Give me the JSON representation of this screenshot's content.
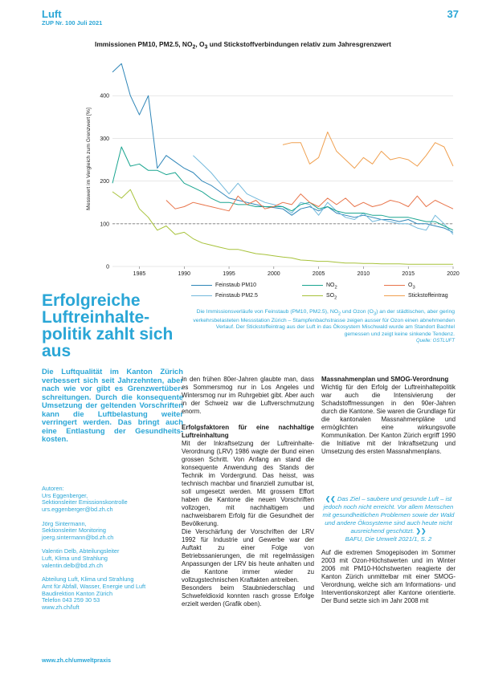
{
  "header": {
    "section": "Luft",
    "issue": "ZUP Nr. 100 Juli 2021",
    "page_number": "37"
  },
  "chart_title_parts": {
    "pre": "Immissionen PM10, PM2.5, NO",
    "sub1": "2",
    "mid": ", O",
    "sub2": "3",
    "post": " und Stickstoffverbindungen relativ zum Jahresgrenzwert"
  },
  "chart_data": {
    "type": "line",
    "title": "Immissionen PM10, PM2.5, NO2, O3 und Stickstoffverbindungen relativ zum Jahresgrenzwert",
    "ylabel": "Messwert im Vergleich zum Grenzwert [%]",
    "xlabel": "",
    "xlim": [
      1982,
      2020
    ],
    "ylim": [
      0,
      500
    ],
    "x_ticks": [
      "1985",
      "1990",
      "1995",
      "2000",
      "2005",
      "2010",
      "2015",
      "2020"
    ],
    "y_ticks": [
      "0",
      "100",
      "200",
      "300",
      "400"
    ],
    "reference_line": 100,
    "grid": "horizontal",
    "legend_position": "bottom",
    "series": [
      {
        "name": "Feinstaub PM10",
        "color": "#2f86b8",
        "x": [
          1982,
          1983,
          1984,
          1985,
          1986,
          1987,
          1988,
          1989,
          1990,
          1991,
          1992,
          1993,
          1994,
          1995,
          1996,
          1997,
          1998,
          1999,
          2000,
          2001,
          2002,
          2003,
          2004,
          2005,
          2006,
          2007,
          2008,
          2009,
          2010,
          2011,
          2012,
          2013,
          2014,
          2015,
          2016,
          2017,
          2018,
          2019,
          2020
        ],
        "y": [
          455,
          475,
          400,
          355,
          400,
          230,
          260,
          245,
          230,
          220,
          200,
          190,
          175,
          160,
          155,
          150,
          145,
          140,
          138,
          135,
          120,
          135,
          140,
          130,
          140,
          125,
          120,
          115,
          120,
          115,
          110,
          110,
          105,
          110,
          100,
          100,
          95,
          90,
          80
        ]
      },
      {
        "name": "Feinstaub PM2.5",
        "color": "#73b9dc",
        "x": [
          1991,
          1992,
          1993,
          1994,
          1995,
          1996,
          1997,
          1998,
          1999,
          2000,
          2001,
          2002,
          2003,
          2004,
          2005,
          2006,
          2007,
          2008,
          2009,
          2010,
          2011,
          2012,
          2013,
          2014,
          2015,
          2016,
          2017,
          2018,
          2019,
          2020
        ],
        "y": [
          260,
          240,
          220,
          195,
          170,
          195,
          170,
          160,
          150,
          145,
          140,
          125,
          150,
          145,
          120,
          150,
          130,
          115,
          110,
          125,
          105,
          110,
          105,
          100,
          100,
          90,
          85,
          120,
          100,
          75
        ]
      },
      {
        "name": "NO2",
        "color": "#1aa590",
        "x": [
          1982,
          1983,
          1984,
          1985,
          1986,
          1987,
          1988,
          1989,
          1990,
          1991,
          1992,
          1993,
          1994,
          1995,
          1996,
          1997,
          1998,
          1999,
          2000,
          2001,
          2002,
          2003,
          2004,
          2005,
          2006,
          2007,
          2008,
          2009,
          2010,
          2011,
          2012,
          2013,
          2014,
          2015,
          2016,
          2017,
          2018,
          2019,
          2020
        ],
        "y": [
          195,
          280,
          235,
          240,
          225,
          225,
          215,
          220,
          195,
          185,
          175,
          160,
          150,
          150,
          145,
          145,
          140,
          140,
          140,
          140,
          130,
          145,
          150,
          135,
          140,
          130,
          125,
          125,
          125,
          120,
          120,
          115,
          115,
          115,
          110,
          105,
          105,
          95,
          85
        ]
      },
      {
        "name": "SO2",
        "color": "#a7c23a",
        "x": [
          1982,
          1983,
          1984,
          1985,
          1986,
          1987,
          1988,
          1989,
          1990,
          1991,
          1992,
          1993,
          1994,
          1995,
          1996,
          1997,
          1998,
          1999,
          2000,
          2001,
          2002,
          2003,
          2004,
          2005,
          2006,
          2007,
          2008,
          2009,
          2010,
          2011,
          2012,
          2013,
          2014,
          2015,
          2016,
          2017,
          2018,
          2019,
          2020
        ],
        "y": [
          175,
          160,
          180,
          135,
          115,
          85,
          95,
          75,
          80,
          65,
          55,
          50,
          45,
          40,
          40,
          35,
          30,
          28,
          25,
          22,
          20,
          15,
          14,
          12,
          12,
          10,
          8,
          8,
          7,
          7,
          6,
          6,
          6,
          5,
          5,
          5,
          5,
          5,
          5
        ]
      },
      {
        "name": "O3",
        "color": "#e8744a",
        "x": [
          1988,
          1989,
          1990,
          1991,
          1992,
          1993,
          1994,
          1995,
          1996,
          1997,
          1998,
          1999,
          2000,
          2001,
          2002,
          2003,
          2004,
          2005,
          2006,
          2007,
          2008,
          2009,
          2010,
          2011,
          2012,
          2013,
          2014,
          2015,
          2016,
          2017,
          2018,
          2019,
          2020
        ],
        "y": [
          155,
          135,
          140,
          150,
          145,
          140,
          135,
          130,
          165,
          145,
          155,
          135,
          140,
          150,
          145,
          170,
          150,
          140,
          160,
          145,
          160,
          140,
          150,
          140,
          145,
          155,
          150,
          140,
          165,
          140,
          155,
          145,
          135
        ]
      },
      {
        "name": "Stickstoffeintrag",
        "color": "#f0a050",
        "x": [
          2001,
          2002,
          2003,
          2004,
          2005,
          2006,
          2007,
          2008,
          2009,
          2010,
          2011,
          2012,
          2013,
          2014,
          2015,
          2016,
          2017,
          2018,
          2019,
          2020
        ],
        "y": [
          285,
          290,
          290,
          240,
          255,
          315,
          270,
          250,
          230,
          255,
          240,
          270,
          250,
          255,
          250,
          235,
          260,
          290,
          280,
          235
        ]
      }
    ]
  },
  "legend": {
    "pm10": "Feinstaub PM10",
    "pm25": "Feinstaub PM2.5",
    "no2_pre": "NO",
    "no2_sub": "2",
    "so2_pre": "SO",
    "so2_sub": "2",
    "o3_pre": "O",
    "o3_sub": "3",
    "stick": "Stickstoffeintrag"
  },
  "caption": {
    "a": "Die Immissionsverläufe von Feinstaub (PM10, PM2.5), NO",
    "a_sub": "2",
    "b": " und Ozon (O",
    "b_sub": "3",
    "c": ") an der städtischen, aber gering verkehrsbelasteten Messstation Zürich – Stampfenbachstrasse zeigen ausser für Ozon einen abnehmenden Verlauf. Der Stickstoffeintrag aus der Luft in das Ökosystem Mischwald wurde am Standort Bachtel gemessen und zeigt keine sinkende Tendenz.",
    "source": "Quelle: OSTLUFT"
  },
  "article": {
    "headline": "Erfolgreiche Luftreinhalte­politik zahlt sich aus",
    "lead": "Die Luftqualität im Kanton Zürich verbessert sich seit Jahrzehnten, aber nach wie vor gibt es Grenzwertüber­schreitungen. Durch die konsequente Umsetzung der geltenden Vorschriften kann die Luftbelastung weiter verringert werden. Das bringt auch eine Ent­lastung der Gesundheits­kosten.",
    "authors_label": "Autoren:",
    "author1_name": "Urs Eggenberger,",
    "author1_role": "Sektionsleiter Emissionskontrolle",
    "author1_email": "urs.eggenberger@bd.zh.ch",
    "author2_name": "Jörg Sintermann,",
    "author2_role": "Sektionsleiter Monitoring",
    "author2_email": "joerg.sintermann@bd.zh.ch",
    "author3_name": "Valentin Delb, Abteilungsleiter",
    "author3_role": "Luft, Klima und Strahlung",
    "author3_email": "valentin.delb@bd.zh.ch",
    "org_line1": "Abteilung Luft, Klima und Strahlung",
    "org_line2": "Amt für Abfall, Wasser, Energie und Luft",
    "org_line3": "Baudirektion Kanton Zürich",
    "org_phone": "Telefon 043 259 30 53",
    "org_web": "www.zh.ch/luft",
    "col2_p1": "In den frühen 80er-Jahren glaubte man, dass es Sommersmog nur in Los Angeles und Wintersmog nur im Ruhrgebiet gibt. Aber auch in der Schweiz war die Luftverschmutzung enorm.",
    "col2_h1": "Erfolgsfaktoren für eine nachhaltige Luftreinhaltung",
    "col2_p2": "Mit der Inkraftsetzung der Luftreinhalte-Verordnung (LRV) 1986 wagte der Bund einen grossen Schritt. Von Anfang an stand die konsequente Anwendung des Stands der Technik im Vordergrund. Das heisst, was technisch machbar und finanziell zumutbar ist, soll umgesetzt werden. Mit grossem Effort haben die Kantone die neuen Vorschriften vollzogen, mit nachhaltigem und nachweisbarem Erfolg für die Gesundheit der Bevölkerung.",
    "col2_p3": "Die Verschärfung der Vorschriften der LRV 1992 für Industrie und Gewerbe war der Auftakt zu einer Folge von Betriebssanierungen, die mit regelmässigen Anpassungen der LRV bis heute anhalten und die Kantone immer wieder zu vollzugstechnischen Kraftakten antreiben.",
    "col2_p4": "Besonders beim Staubniederschlag und Schwefeldioxid konnten rasch grosse Erfolge erzielt werden (Grafik oben).",
    "col3_h1": "Massnahmenplan und SMOG-Verordnung",
    "col3_p1": "Wichtig für den Erfolg der Luftreinhaltepolitik war auch die Intensivierung der Schadstoffmessungen in den 90er-Jahren durch die Kantone. Sie waren die Grundlage für die kantonalen Massnahmenpläne und ermöglichten eine wirkungsvolle Kommunikation. Der Kanton Zürich ergriff 1990 die Initiative mit der Inkraftsetzung und Umsetzung des ersten Massnahmenplans.",
    "quote_open": "❮❮",
    "quote_text": "Das Ziel – saubere und gesunde Luft – ist jedoch noch nicht erreicht. Vor allem Menschen mit gesundheitlichen Problemen sowie der Wald und andere Ökosysteme sind auch heute nicht ausreichend geschützt.",
    "quote_close": "❯❯",
    "quote_source": "BAFU, Die Umwelt 2021/1, S. 2",
    "col3_p2": "Auf die extremen Smogepisoden im Sommer 2003 mit Ozon-Höchstwerten und im Winter 2006 mit PM10-Höchstwerten reagierte der Kanton Zürich unmittelbar mit einer SMOG-Verordnung, welche sich am Informations- und Interventionskonzept aller Kantone orientierte. Der Bund setzte sich im Jahr 2008 mit"
  },
  "footer": {
    "url": "www.zh.ch/umweltpraxis"
  }
}
